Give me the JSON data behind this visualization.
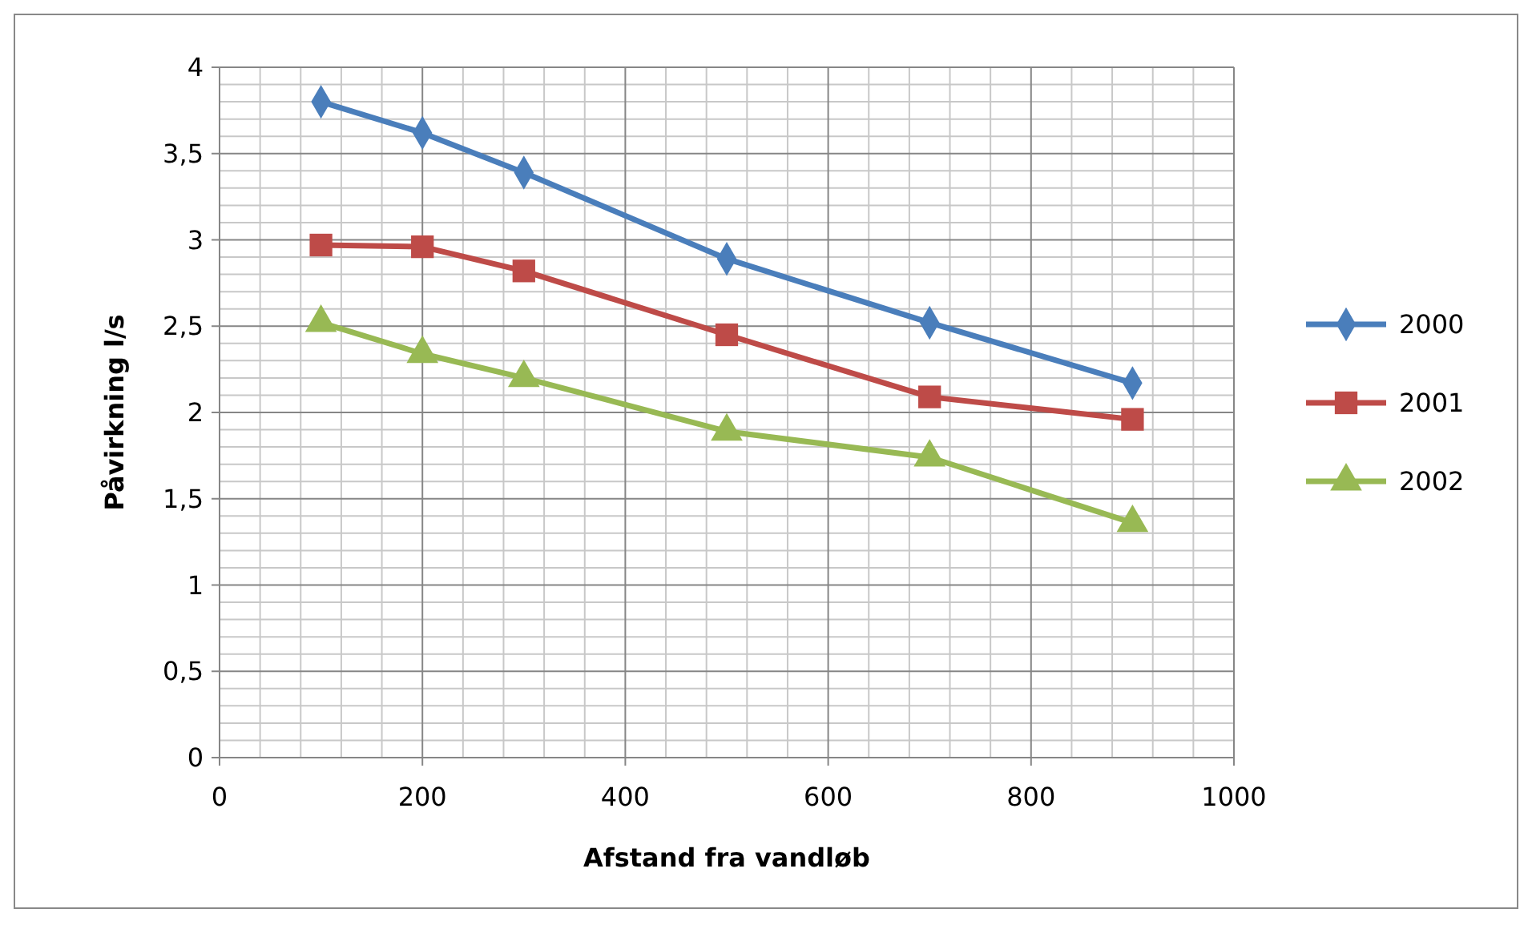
{
  "chart_data": {
    "type": "line",
    "xlabel": "Afstand fra vandløb",
    "ylabel": "Påvirkning l/s",
    "x": [
      100,
      200,
      300,
      500,
      700,
      900
    ],
    "series": [
      {
        "name": "2000",
        "color": "#4a7ebb",
        "marker": "diamond",
        "values": [
          3.8,
          3.62,
          3.39,
          2.89,
          2.52,
          2.17
        ]
      },
      {
        "name": "2001",
        "color": "#be4b48",
        "marker": "square",
        "values": [
          2.97,
          2.96,
          2.82,
          2.45,
          2.09,
          1.96
        ]
      },
      {
        "name": "2002",
        "color": "#98b954",
        "marker": "triangle",
        "values": [
          2.52,
          2.34,
          2.2,
          1.89,
          1.74,
          1.36
        ]
      }
    ],
    "xlim": [
      0,
      1000
    ],
    "xticks": [
      0,
      200,
      400,
      600,
      800,
      1000
    ],
    "ylim": [
      0,
      4
    ],
    "yticks": [
      0,
      {
        "value": 0.5,
        "label": "0,5"
      },
      1,
      {
        "value": 1.5,
        "label": "1,5"
      },
      2,
      {
        "value": 2.5,
        "label": "2,5"
      },
      3,
      {
        "value": 3.5,
        "label": "3,5"
      },
      4
    ],
    "grid": true,
    "legend": "right"
  }
}
